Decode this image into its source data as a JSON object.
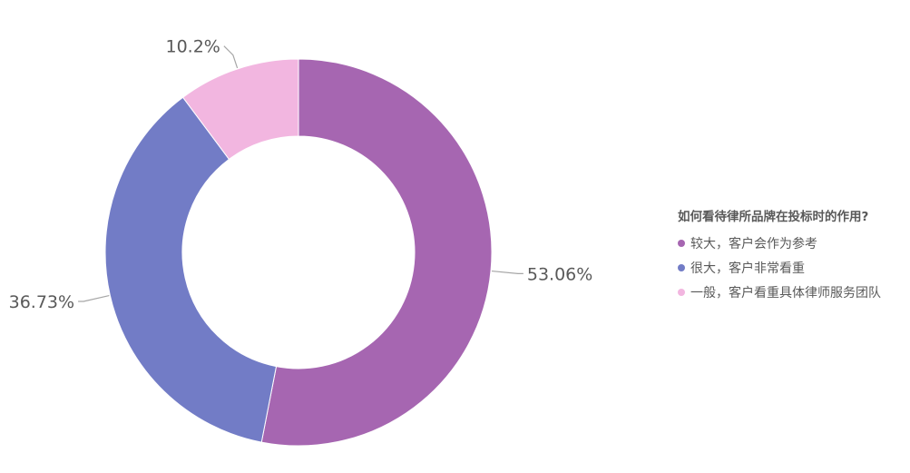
{
  "chart_data": {
    "type": "pie",
    "donut": true,
    "title": "",
    "categories": [
      "较大，客户会作为参考",
      "很大，客户非常看重",
      "一般，客户看重具体律师服务团队"
    ],
    "values": [
      53.06,
      36.73,
      10.2
    ],
    "data_labels": [
      "53.06%",
      "36.73%",
      "10.2%"
    ],
    "colors": [
      "#a666b1",
      "#727cc6",
      "#f2b6e0"
    ],
    "legend": {
      "title": "如何看待律所品牌在投标时的作用?",
      "position": "right"
    }
  }
}
